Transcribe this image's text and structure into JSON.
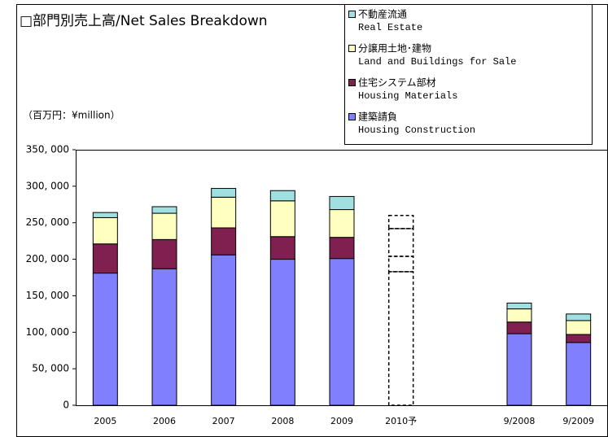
{
  "chart_data": {
    "type": "stacked_bar",
    "title": "□部門別売上高/Net Sales Breakdown",
    "unit_label": "（百万円：¥million）",
    "categories": [
      "2005",
      "2006",
      "2007",
      "2008",
      "2009",
      "2010予",
      null,
      "9/2008",
      "9/2009"
    ],
    "forecast": [
      false,
      false,
      false,
      false,
      false,
      true,
      false,
      false,
      false
    ],
    "series": [
      {
        "name": "建築請負",
        "name_en": "Housing Construction",
        "color": "#8080ff",
        "values": [
          181000,
          187000,
          206000,
          200000,
          201000,
          183000,
          null,
          98000,
          86000
        ]
      },
      {
        "name": "住宅システム部材",
        "name_en": "Housing Materials",
        "color": "#802050",
        "values": [
          40000,
          40000,
          37000,
          31000,
          29000,
          21000,
          null,
          16000,
          11000
        ]
      },
      {
        "name": "分譲用土地･建物",
        "name_en": "Land and Buildings for Sale",
        "color": "#ffffc0",
        "values": [
          36000,
          36000,
          42000,
          49000,
          38000,
          38000,
          null,
          18000,
          19000
        ]
      },
      {
        "name": "不動産流通",
        "name_en": "Real Estate",
        "color": "#a0e0e0",
        "values": [
          7000,
          9000,
          12000,
          14000,
          18000,
          18000,
          null,
          8000,
          9000
        ]
      }
    ],
    "ylim": [
      0,
      350000
    ],
    "yticks": [
      0,
      {
        "value": 50000,
        "label": "50, 000"
      },
      {
        "value": 100000,
        "label": "100, 000"
      },
      {
        "value": 150000,
        "label": "150, 000"
      },
      {
        "value": 200000,
        "label": "200, 000"
      },
      {
        "value": 250000,
        "label": "250, 000"
      },
      {
        "value": 300000,
        "label": "300, 000"
      },
      {
        "value": 350000,
        "label": "350, 000"
      }
    ],
    "grid": false
  }
}
